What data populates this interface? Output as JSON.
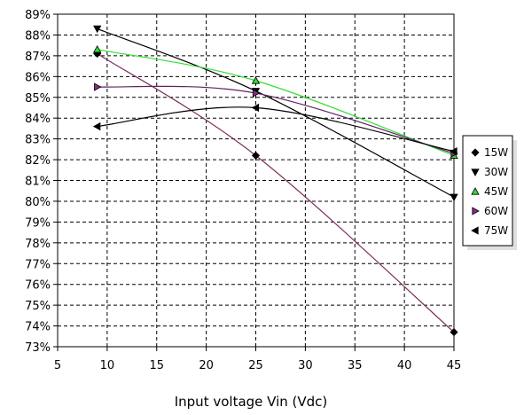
{
  "chart_data": {
    "type": "line",
    "title": "",
    "xlabel": "Input voltage Vin (Vdc)",
    "ylabel": "",
    "xlim": [
      5,
      45
    ],
    "ylim": [
      73,
      89
    ],
    "x_ticks": [
      "5",
      "10",
      "15",
      "20",
      "25",
      "30",
      "35",
      "40",
      "45"
    ],
    "y_ticks": [
      "73%",
      "74%",
      "75%",
      "76%",
      "77%",
      "78%",
      "79%",
      "80%",
      "81%",
      "82%",
      "83%",
      "84%",
      "85%",
      "86%",
      "87%",
      "88%",
      "89%"
    ],
    "grid": true,
    "legend_position": "right",
    "x": [
      9,
      25,
      45
    ],
    "series": [
      {
        "name": "15W",
        "values": [
          87.1,
          82.2,
          73.7
        ],
        "color": "#803060",
        "marker": "diamond",
        "marker_color": "#000000"
      },
      {
        "name": "30W",
        "values": [
          88.3,
          85.3,
          80.2
        ],
        "color": "#000000",
        "marker": "triangle-down",
        "marker_color": "#000000"
      },
      {
        "name": "45W",
        "values": [
          87.3,
          85.8,
          82.2
        ],
        "color": "#33dd33",
        "marker": "triangle-up",
        "marker_color": "#33dd33"
      },
      {
        "name": "60W",
        "values": [
          85.5,
          85.2,
          82.3
        ],
        "color": "#602060",
        "marker": "triangle-right",
        "marker_color": "#803080"
      },
      {
        "name": "75W",
        "values": [
          83.6,
          84.5,
          82.4
        ],
        "color": "#000000",
        "marker": "triangle-left",
        "marker_color": "#000000"
      }
    ]
  }
}
